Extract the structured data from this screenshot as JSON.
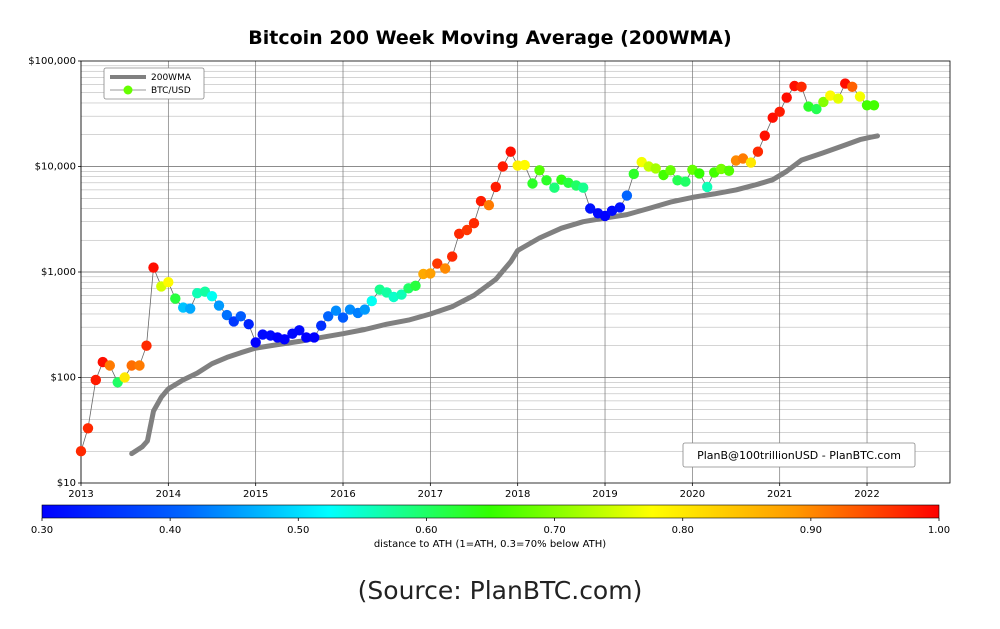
{
  "chart_data": {
    "type": "scatter",
    "title": "Bitcoin 200 Week Moving Average (200WMA)",
    "y_scale": "log",
    "ylim": [
      10,
      100000
    ],
    "xlim": [
      2013.0,
      2022.95
    ],
    "y_ticks": [
      {
        "value": 10,
        "label": "$10"
      },
      {
        "value": 100,
        "label": "$100"
      },
      {
        "value": 1000,
        "label": "$1,000"
      },
      {
        "value": 10000,
        "label": "$10,000"
      },
      {
        "value": 100000,
        "label": "$100,000"
      }
    ],
    "x_ticks": [
      {
        "value": 2013,
        "label": "2013"
      },
      {
        "value": 2014,
        "label": "2014"
      },
      {
        "value": 2015,
        "label": "2015"
      },
      {
        "value": 2016,
        "label": "2016"
      },
      {
        "value": 2017,
        "label": "2017"
      },
      {
        "value": 2018,
        "label": "2018"
      },
      {
        "value": 2019,
        "label": "2019"
      },
      {
        "value": 2020,
        "label": "2020"
      },
      {
        "value": 2021,
        "label": "2021"
      },
      {
        "value": 2022,
        "label": "2022"
      }
    ],
    "grid": true,
    "legend": {
      "placement": "top-left",
      "entries": [
        {
          "label": "200WMA",
          "color": "#808080"
        },
        {
          "label": "BTC/USD",
          "color": "#66ff00"
        }
      ]
    },
    "credit_box": "PlanB@100trillionUSD  -  PlanBTC.com",
    "colorbar": {
      "label": "distance to ATH (1=ATH, 0.3=70% below ATH)",
      "min": 0.3,
      "max": 1.0,
      "ticks": [
        {
          "value": 0.3,
          "label": "0.30"
        },
        {
          "value": 0.4,
          "label": "0.40"
        },
        {
          "value": 0.5,
          "label": "0.50"
        },
        {
          "value": 0.6,
          "label": "0.60"
        },
        {
          "value": 0.7,
          "label": "0.70"
        },
        {
          "value": 0.8,
          "label": "0.80"
        },
        {
          "value": 0.9,
          "label": "0.90"
        },
        {
          "value": 1.0,
          "label": "1.00"
        }
      ]
    },
    "series": [
      {
        "name": "200WMA",
        "color": "#808080",
        "points": [
          [
            2013.58,
            19
          ],
          [
            2013.7,
            22
          ],
          [
            2013.76,
            25
          ],
          [
            2013.83,
            48
          ],
          [
            2013.92,
            65
          ],
          [
            2014.0,
            78
          ],
          [
            2014.17,
            95
          ],
          [
            2014.33,
            110
          ],
          [
            2014.5,
            135
          ],
          [
            2014.67,
            155
          ],
          [
            2014.83,
            172
          ],
          [
            2015.0,
            190
          ],
          [
            2015.25,
            205
          ],
          [
            2015.5,
            220
          ],
          [
            2015.75,
            240
          ],
          [
            2016.0,
            260
          ],
          [
            2016.25,
            285
          ],
          [
            2016.5,
            320
          ],
          [
            2016.75,
            350
          ],
          [
            2017.0,
            400
          ],
          [
            2017.25,
            470
          ],
          [
            2017.5,
            600
          ],
          [
            2017.75,
            850
          ],
          [
            2017.92,
            1250
          ],
          [
            2018.0,
            1600
          ],
          [
            2018.25,
            2100
          ],
          [
            2018.5,
            2600
          ],
          [
            2018.75,
            3000
          ],
          [
            2019.0,
            3250
          ],
          [
            2019.25,
            3500
          ],
          [
            2019.5,
            4000
          ],
          [
            2019.75,
            4600
          ],
          [
            2020.0,
            5100
          ],
          [
            2020.25,
            5500
          ],
          [
            2020.5,
            6000
          ],
          [
            2020.75,
            6800
          ],
          [
            2020.92,
            7500
          ],
          [
            2021.08,
            9000
          ],
          [
            2021.25,
            11500
          ],
          [
            2021.5,
            13500
          ],
          [
            2021.75,
            16000
          ],
          [
            2021.92,
            18000
          ],
          [
            2022.05,
            19000
          ],
          [
            2022.12,
            19500
          ]
        ]
      },
      {
        "name": "BTC/USD",
        "color": "#66ff00",
        "points": [
          [
            2013.0,
            20,
            0.97
          ],
          [
            2013.08,
            33,
            0.97
          ],
          [
            2013.17,
            95,
            0.98
          ],
          [
            2013.25,
            140,
            0.99
          ],
          [
            2013.33,
            130,
            0.91
          ],
          [
            2013.42,
            90,
            0.6
          ],
          [
            2013.5,
            100,
            0.8
          ],
          [
            2013.58,
            130,
            0.92
          ],
          [
            2013.67,
            130,
            0.91
          ],
          [
            2013.75,
            200,
            0.97
          ],
          [
            2013.83,
            1100,
            0.99
          ],
          [
            2013.92,
            730,
            0.75
          ],
          [
            2014.0,
            800,
            0.78
          ],
          [
            2014.08,
            560,
            0.62
          ],
          [
            2014.17,
            460,
            0.48
          ],
          [
            2014.25,
            450,
            0.46
          ],
          [
            2014.33,
            630,
            0.56
          ],
          [
            2014.42,
            650,
            0.57
          ],
          [
            2014.5,
            590,
            0.53
          ],
          [
            2014.58,
            480,
            0.45
          ],
          [
            2014.67,
            390,
            0.42
          ],
          [
            2014.75,
            340,
            0.36
          ],
          [
            2014.83,
            380,
            0.4
          ],
          [
            2014.92,
            320,
            0.34
          ],
          [
            2015.0,
            215,
            0.3
          ],
          [
            2015.08,
            255,
            0.31
          ],
          [
            2015.17,
            250,
            0.31
          ],
          [
            2015.25,
            240,
            0.3
          ],
          [
            2015.33,
            230,
            0.3
          ],
          [
            2015.42,
            260,
            0.31
          ],
          [
            2015.5,
            280,
            0.31
          ],
          [
            2015.58,
            240,
            0.3
          ],
          [
            2015.67,
            240,
            0.3
          ],
          [
            2015.75,
            310,
            0.35
          ],
          [
            2015.83,
            380,
            0.41
          ],
          [
            2015.92,
            430,
            0.44
          ],
          [
            2016.0,
            370,
            0.4
          ],
          [
            2016.08,
            440,
            0.44
          ],
          [
            2016.17,
            410,
            0.43
          ],
          [
            2016.25,
            440,
            0.45
          ],
          [
            2016.33,
            530,
            0.53
          ],
          [
            2016.42,
            680,
            0.58
          ],
          [
            2016.5,
            640,
            0.57
          ],
          [
            2016.58,
            580,
            0.55
          ],
          [
            2016.67,
            610,
            0.56
          ],
          [
            2016.75,
            700,
            0.6
          ],
          [
            2016.83,
            740,
            0.62
          ],
          [
            2016.92,
            960,
            0.87
          ],
          [
            2017.0,
            970,
            0.88
          ],
          [
            2017.08,
            1200,
            0.96
          ],
          [
            2017.17,
            1080,
            0.9
          ],
          [
            2017.25,
            1400,
            0.97
          ],
          [
            2017.33,
            2300,
            0.97
          ],
          [
            2017.42,
            2500,
            0.96
          ],
          [
            2017.5,
            2900,
            0.97
          ],
          [
            2017.58,
            4700,
            0.98
          ],
          [
            2017.67,
            4300,
            0.91
          ],
          [
            2017.75,
            6400,
            0.98
          ],
          [
            2017.83,
            10000,
            0.98
          ],
          [
            2017.92,
            13800,
            0.99
          ],
          [
            2018.0,
            10200,
            0.79
          ],
          [
            2018.08,
            10300,
            0.78
          ],
          [
            2018.17,
            6900,
            0.63
          ],
          [
            2018.25,
            9200,
            0.67
          ],
          [
            2018.33,
            7400,
            0.63
          ],
          [
            2018.42,
            6300,
            0.59
          ],
          [
            2018.5,
            7500,
            0.64
          ],
          [
            2018.58,
            7000,
            0.62
          ],
          [
            2018.67,
            6600,
            0.6
          ],
          [
            2018.75,
            6300,
            0.58
          ],
          [
            2018.83,
            4000,
            0.32
          ],
          [
            2018.92,
            3600,
            0.31
          ],
          [
            2019.0,
            3400,
            0.3
          ],
          [
            2019.08,
            3800,
            0.31
          ],
          [
            2019.17,
            4100,
            0.32
          ],
          [
            2019.25,
            5300,
            0.41
          ],
          [
            2019.33,
            8500,
            0.63
          ],
          [
            2019.42,
            11000,
            0.77
          ],
          [
            2019.5,
            10000,
            0.74
          ],
          [
            2019.58,
            9600,
            0.72
          ],
          [
            2019.67,
            8300,
            0.66
          ],
          [
            2019.75,
            9200,
            0.68
          ],
          [
            2019.83,
            7400,
            0.61
          ],
          [
            2019.92,
            7200,
            0.6
          ],
          [
            2020.0,
            9300,
            0.68
          ],
          [
            2020.08,
            8600,
            0.65
          ],
          [
            2020.17,
            6400,
            0.56
          ],
          [
            2020.25,
            8800,
            0.66
          ],
          [
            2020.33,
            9500,
            0.69
          ],
          [
            2020.42,
            9100,
            0.67
          ],
          [
            2020.5,
            11400,
            0.9
          ],
          [
            2020.58,
            11900,
            0.91
          ],
          [
            2020.67,
            10900,
            0.8
          ],
          [
            2020.75,
            13800,
            0.97
          ],
          [
            2020.83,
            19600,
            0.99
          ],
          [
            2020.92,
            29000,
            0.99
          ],
          [
            2021.0,
            33000,
            0.98
          ],
          [
            2021.08,
            45000,
            0.99
          ],
          [
            2021.17,
            58000,
            0.99
          ],
          [
            2021.25,
            57000,
            0.97
          ],
          [
            2021.33,
            37000,
            0.63
          ],
          [
            2021.42,
            35000,
            0.61
          ],
          [
            2021.5,
            41000,
            0.7
          ],
          [
            2021.58,
            47000,
            0.78
          ],
          [
            2021.67,
            44000,
            0.76
          ],
          [
            2021.75,
            61000,
            0.99
          ],
          [
            2021.83,
            57000,
            0.93
          ],
          [
            2021.92,
            46000,
            0.77
          ],
          [
            2022.0,
            38000,
            0.66
          ],
          [
            2022.08,
            38000,
            0.66
          ]
        ]
      }
    ]
  },
  "source_caption": "(Source: PlanBTC.com)"
}
